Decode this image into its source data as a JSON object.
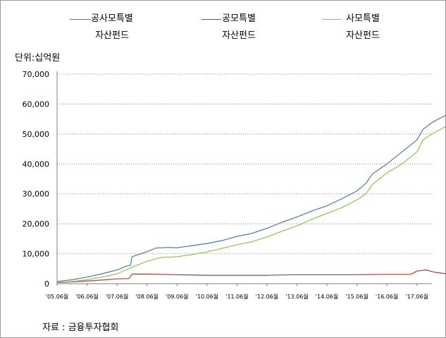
{
  "unit_label": "단위:십억원",
  "source_label": "자료 : 금융투자협회",
  "chart_data": {
    "type": "line",
    "title": "",
    "xlabel": "",
    "ylabel": "단위:십억원",
    "ylim": [
      0,
      70000
    ],
    "yticks": [
      "0",
      "10,000",
      "20,000",
      "30,000",
      "40,000",
      "50,000",
      "60,000",
      "70,000"
    ],
    "xticks": [
      "'05.06월",
      "'06.06월",
      "'07.06월",
      "'08.06월",
      "'09.06월",
      "'10.06월",
      "'11.06월",
      "'12.06월",
      "'13.06월",
      "'14.06월",
      "'15.06월",
      "'16.06월",
      "'17.06월"
    ],
    "grid": "horizontal-dotted",
    "legend_position": "top",
    "series": [
      {
        "name": "공사모특별\n자산펀드",
        "color": "#4a7ba7",
        "points": [
          [
            0,
            700
          ],
          [
            0.5,
            1300
          ],
          [
            1.0,
            2200
          ],
          [
            1.5,
            3300
          ],
          [
            2.0,
            4600
          ],
          [
            2.3,
            5800
          ],
          [
            2.45,
            6200
          ],
          [
            2.5,
            9000
          ],
          [
            3.0,
            10700
          ],
          [
            3.3,
            11900
          ],
          [
            3.7,
            12100
          ],
          [
            4.0,
            12000
          ],
          [
            4.5,
            12700
          ],
          [
            5.0,
            13400
          ],
          [
            5.5,
            14400
          ],
          [
            6.0,
            15800
          ],
          [
            6.5,
            16800
          ],
          [
            7.0,
            18500
          ],
          [
            7.5,
            20500
          ],
          [
            8.0,
            22300
          ],
          [
            8.5,
            24300
          ],
          [
            9.0,
            26000
          ],
          [
            9.5,
            28400
          ],
          [
            10.0,
            31000
          ],
          [
            10.3,
            33500
          ],
          [
            10.5,
            36500
          ],
          [
            11.0,
            40000
          ],
          [
            11.5,
            44000
          ],
          [
            12.0,
            48000
          ],
          [
            12.2,
            51500
          ],
          [
            12.5,
            53800
          ],
          [
            13.0,
            56500
          ],
          [
            13.4,
            59500
          ]
        ]
      },
      {
        "name": "공모특별\n자산펀드",
        "color": "#a5403f",
        "points": [
          [
            0,
            300
          ],
          [
            0.5,
            600
          ],
          [
            1.0,
            900
          ],
          [
            1.5,
            1200
          ],
          [
            2.0,
            1600
          ],
          [
            2.4,
            1700
          ],
          [
            2.5,
            3200
          ],
          [
            3.0,
            3200
          ],
          [
            4.0,
            3000
          ],
          [
            5.0,
            2800
          ],
          [
            6.0,
            2800
          ],
          [
            7.0,
            2800
          ],
          [
            8.0,
            3000
          ],
          [
            9.0,
            3000
          ],
          [
            10.0,
            3000
          ],
          [
            11.0,
            3100
          ],
          [
            11.8,
            3100
          ],
          [
            12.0,
            4200
          ],
          [
            12.3,
            4600
          ],
          [
            12.6,
            3800
          ],
          [
            13.0,
            3300
          ],
          [
            13.4,
            3000
          ]
        ]
      },
      {
        "name": "사모특별\n자산펀드",
        "color": "#9bbb4d",
        "points": [
          [
            0,
            400
          ],
          [
            0.5,
            700
          ],
          [
            1.0,
            1300
          ],
          [
            1.5,
            2200
          ],
          [
            2.0,
            3300
          ],
          [
            2.5,
            5500
          ],
          [
            3.0,
            7500
          ],
          [
            3.5,
            8800
          ],
          [
            4.0,
            9000
          ],
          [
            4.5,
            9700
          ],
          [
            5.0,
            10600
          ],
          [
            5.5,
            11800
          ],
          [
            6.0,
            13000
          ],
          [
            6.5,
            14000
          ],
          [
            7.0,
            15600
          ],
          [
            7.5,
            17500
          ],
          [
            8.0,
            19300
          ],
          [
            8.5,
            21500
          ],
          [
            9.0,
            23500
          ],
          [
            9.5,
            25400
          ],
          [
            10.0,
            28000
          ],
          [
            10.3,
            30000
          ],
          [
            10.5,
            33000
          ],
          [
            11.0,
            37000
          ],
          [
            11.5,
            40000
          ],
          [
            12.0,
            44000
          ],
          [
            12.2,
            48000
          ],
          [
            12.5,
            50000
          ],
          [
            13.0,
            52700
          ],
          [
            13.4,
            56000
          ]
        ]
      }
    ]
  }
}
